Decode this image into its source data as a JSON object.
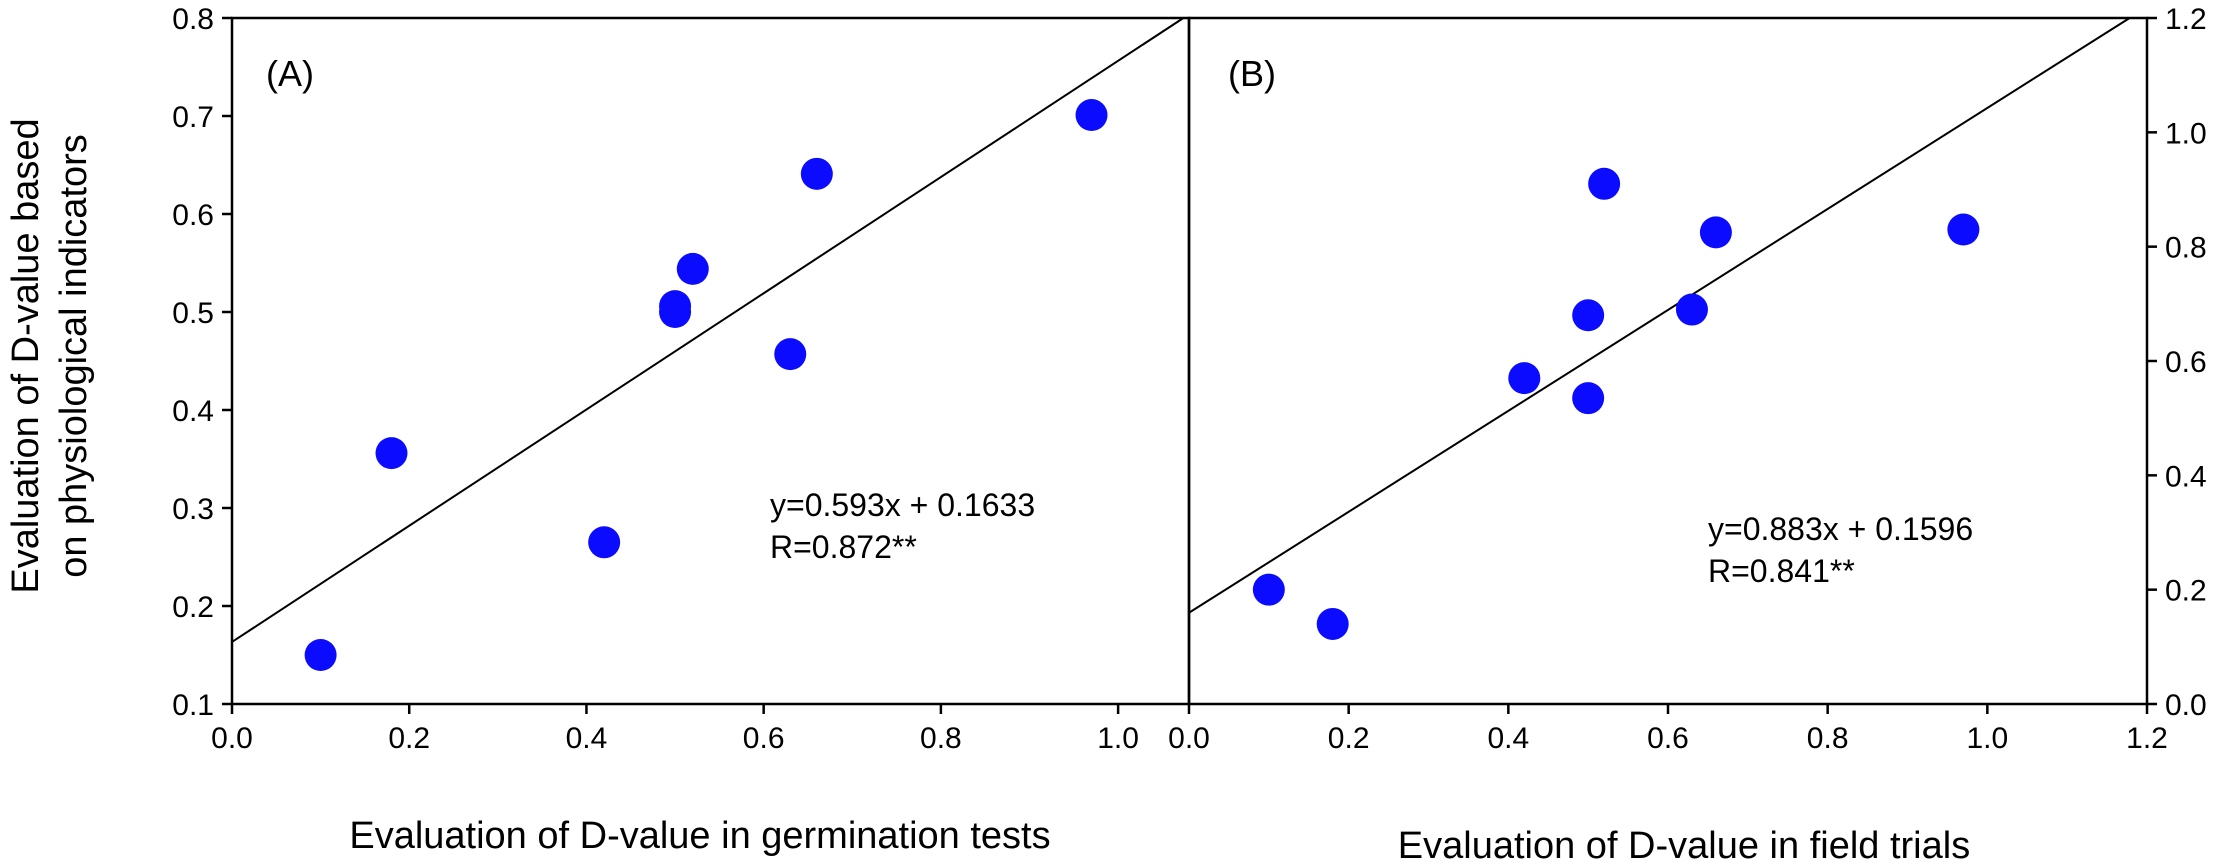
{
  "chart_data": [
    {
      "type": "scatter",
      "panel_label": "(A)",
      "xlabel": "Evaluation of D-value in germination tests",
      "ylabel": "Evaluation of D-value based",
      "ylabel_line2": "on physiological  indicators",
      "xlim": [
        0.0,
        1.08
      ],
      "ylim": [
        0.1,
        0.8
      ],
      "x_ticks": [
        "0.0",
        "0.2",
        "0.4",
        "0.6",
        "0.8",
        "1.0"
      ],
      "y_ticks": [
        "0.1",
        "0.2",
        "0.3",
        "0.4",
        "0.5",
        "0.6",
        "0.7",
        "0.8"
      ],
      "y_axis_side": "left",
      "x": [
        0.1,
        0.18,
        0.42,
        0.5,
        0.5,
        0.52,
        0.63,
        0.66,
        0.97
      ],
      "y": [
        0.15,
        0.356,
        0.265,
        0.5,
        0.506,
        0.544,
        0.457,
        0.641,
        0.701
      ],
      "fit": {
        "slope": 0.593,
        "intercept": 0.1633
      },
      "equation": "y=0.593x + 0.1633",
      "r_text": "R=0.872**"
    },
    {
      "type": "scatter",
      "panel_label": "(B)",
      "xlabel": "Evaluation of D-value in field trials",
      "xlim": [
        0.0,
        1.2
      ],
      "ylim": [
        0.0,
        1.2
      ],
      "x_ticks": [
        "0.0",
        "0.2",
        "0.4",
        "0.6",
        "0.8",
        "1.0",
        "1.2"
      ],
      "y_ticks": [
        "0.0",
        "0.2",
        "0.4",
        "0.6",
        "0.8",
        "1.0",
        "1.2"
      ],
      "y_axis_side": "right",
      "x": [
        0.1,
        0.18,
        0.42,
        0.5,
        0.5,
        0.52,
        0.63,
        0.66,
        0.97
      ],
      "y": [
        0.2,
        0.14,
        0.57,
        0.535,
        0.68,
        0.91,
        0.69,
        0.825,
        0.83
      ],
      "fit": {
        "slope": 0.883,
        "intercept": 0.1596
      },
      "equation": "y=0.883x + 0.1596",
      "r_text": "R=0.841**"
    }
  ]
}
